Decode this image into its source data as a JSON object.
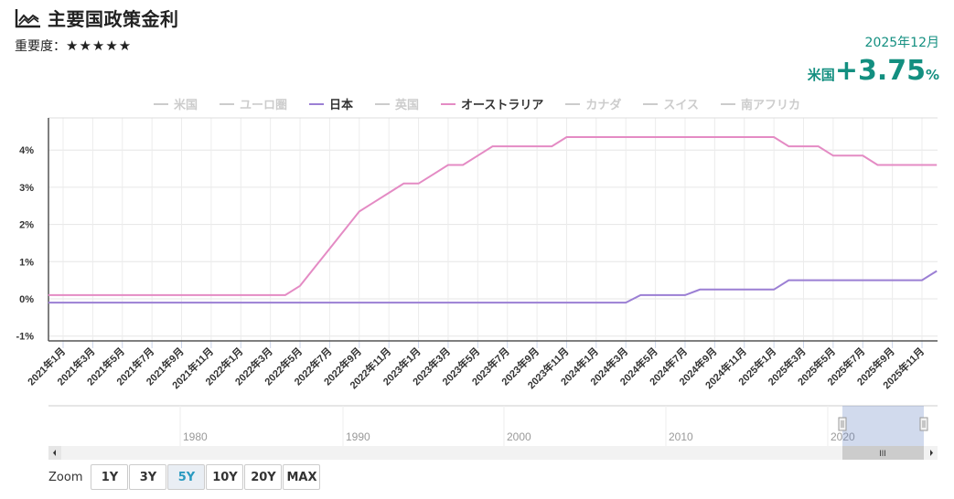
{
  "header": {
    "icon": "line-chart-icon",
    "title": "主要国政策金利",
    "importance_label": "重要度：",
    "importance_stars": "★★★★★"
  },
  "latest": {
    "date": "2025年12月",
    "country": "米国",
    "value": "+3.75",
    "unit": "%"
  },
  "colors": {
    "japan": "#9b7fd4",
    "australia": "#e48bc4",
    "accent": "#138f80",
    "inactive": "#cccccc"
  },
  "legend": [
    {
      "label": "米国",
      "active": false,
      "color": "#cccccc"
    },
    {
      "label": "ユーロ圏",
      "active": false,
      "color": "#cccccc"
    },
    {
      "label": "日本",
      "active": true,
      "color": "#9b7fd4"
    },
    {
      "label": "英国",
      "active": false,
      "color": "#cccccc"
    },
    {
      "label": "オーストラリア",
      "active": true,
      "color": "#e48bc4"
    },
    {
      "label": "カナダ",
      "active": false,
      "color": "#cccccc"
    },
    {
      "label": "スイス",
      "active": false,
      "color": "#cccccc"
    },
    {
      "label": "南アフリカ",
      "active": false,
      "color": "#cccccc"
    }
  ],
  "navigator": {
    "labels": [
      "1980",
      "1990",
      "2000",
      "2010",
      "2020"
    ],
    "scroll_left": "◂",
    "scroll_right": "▸",
    "thumb_grip": "III"
  },
  "zoom": {
    "label": "Zoom",
    "buttons": [
      {
        "label": "1Y",
        "active": false
      },
      {
        "label": "3Y",
        "active": false
      },
      {
        "label": "5Y",
        "active": true
      },
      {
        "label": "10Y",
        "active": false
      },
      {
        "label": "20Y",
        "active": false
      },
      {
        "label": "MAX",
        "active": false
      }
    ]
  },
  "chart_data": {
    "type": "line",
    "title": "主要国政策金利",
    "xlabel": "",
    "ylabel": "",
    "ylim": [
      -1,
      5
    ],
    "yticks": [
      "-1%",
      "0%",
      "1%",
      "2%",
      "3%",
      "4%"
    ],
    "grid": true,
    "legend_position": "top",
    "x_start": "2020-12",
    "x": [
      "2021年1月",
      "2021年3月",
      "2021年5月",
      "2021年7月",
      "2021年9月",
      "2021年11月",
      "2022年1月",
      "2022年3月",
      "2022年5月",
      "2022年7月",
      "2022年9月",
      "2022年11月",
      "2023年1月",
      "2023年3月",
      "2023年5月",
      "2023年7月",
      "2023年9月",
      "2023年11月",
      "2024年1月",
      "2024年3月",
      "2024年5月",
      "2024年7月",
      "2024年9月",
      "2024年11月",
      "2025年1月",
      "2025年3月",
      "2025年5月",
      "2025年7月",
      "2025年9月",
      "2025年11月"
    ],
    "series": [
      {
        "name": "オーストラリア",
        "color": "#e48bc4",
        "monthly_from": "2020-12",
        "values": [
          0.1,
          0.1,
          0.1,
          0.1,
          0.1,
          0.1,
          0.1,
          0.1,
          0.1,
          0.1,
          0.1,
          0.1,
          0.1,
          0.1,
          0.1,
          0.1,
          0.1,
          0.35,
          0.85,
          1.35,
          1.85,
          2.35,
          2.6,
          2.85,
          3.1,
          3.1,
          3.35,
          3.6,
          3.6,
          3.85,
          4.1,
          4.1,
          4.1,
          4.1,
          4.1,
          4.35,
          4.35,
          4.35,
          4.35,
          4.35,
          4.35,
          4.35,
          4.35,
          4.35,
          4.35,
          4.35,
          4.35,
          4.35,
          4.35,
          4.35,
          4.1,
          4.1,
          4.1,
          3.85,
          3.85,
          3.85,
          3.6,
          3.6,
          3.6,
          3.6,
          3.6
        ]
      },
      {
        "name": "日本",
        "color": "#9b7fd4",
        "monthly_from": "2020-12",
        "values": [
          -0.1,
          -0.1,
          -0.1,
          -0.1,
          -0.1,
          -0.1,
          -0.1,
          -0.1,
          -0.1,
          -0.1,
          -0.1,
          -0.1,
          -0.1,
          -0.1,
          -0.1,
          -0.1,
          -0.1,
          -0.1,
          -0.1,
          -0.1,
          -0.1,
          -0.1,
          -0.1,
          -0.1,
          -0.1,
          -0.1,
          -0.1,
          -0.1,
          -0.1,
          -0.1,
          -0.1,
          -0.1,
          -0.1,
          -0.1,
          -0.1,
          -0.1,
          -0.1,
          -0.1,
          -0.1,
          -0.1,
          0.1,
          0.1,
          0.1,
          0.1,
          0.25,
          0.25,
          0.25,
          0.25,
          0.25,
          0.25,
          0.5,
          0.5,
          0.5,
          0.5,
          0.5,
          0.5,
          0.5,
          0.5,
          0.5,
          0.5,
          0.75
        ]
      }
    ]
  }
}
